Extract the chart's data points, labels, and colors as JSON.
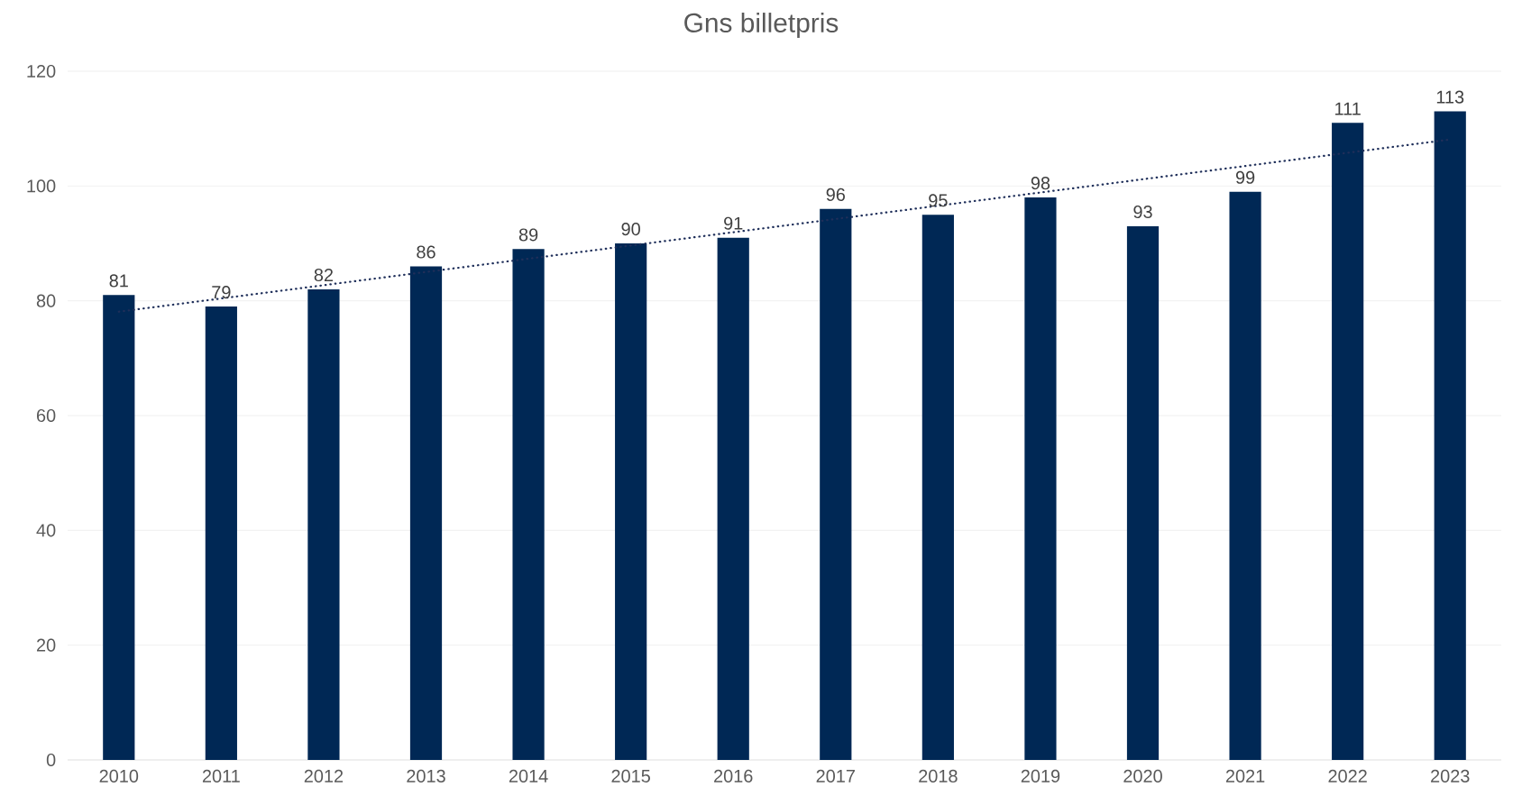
{
  "chart_data": {
    "type": "bar",
    "title": "Gns billetpris",
    "x": [
      2010,
      2011,
      2012,
      2013,
      2014,
      2015,
      2016,
      2017,
      2018,
      2019,
      2020,
      2021,
      2022,
      2023
    ],
    "xlim": [
      2009.5,
      2023.5
    ],
    "xticks": [
      2010,
      2011,
      2012,
      2013,
      2014,
      2015,
      2016,
      2017,
      2018,
      2019,
      2020,
      2021,
      2022,
      2023
    ],
    "ylim": [
      0,
      120
    ],
    "yticks": [
      0,
      20,
      40,
      60,
      80,
      100,
      120
    ],
    "grid": "y",
    "series": [
      {
        "color": "#002855",
        "data_labels": true,
        "values": [
          81,
          79,
          82,
          86,
          89,
          90,
          91,
          96,
          95,
          98,
          93,
          99,
          111,
          113
        ]
      },
      {
        "type": "line",
        "x": [
          2010,
          2023
        ],
        "values": [
          78.1,
          108.1
        ],
        "color": "#1f2f5a",
        "line_style": "dotted",
        "marker": "none"
      }
    ]
  }
}
